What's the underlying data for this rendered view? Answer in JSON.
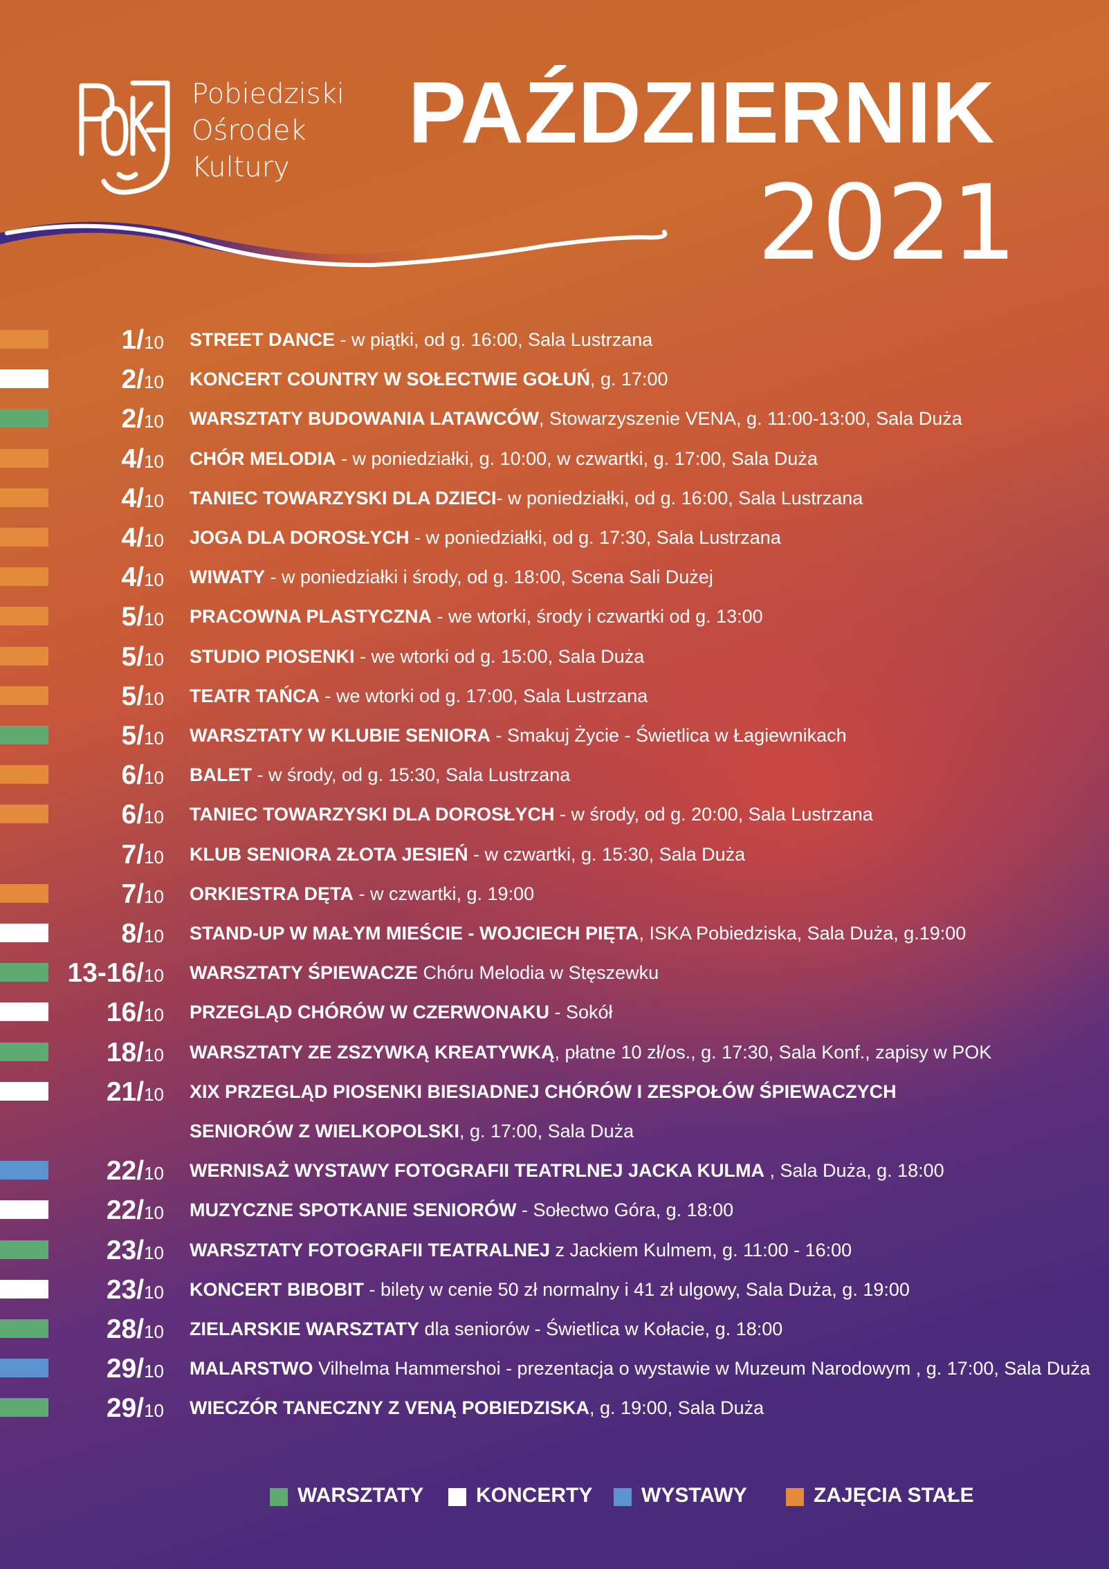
{
  "header": {
    "org_lines": [
      "Pobiedziski",
      "Ośrodek",
      "Kultury"
    ],
    "month": "PAŹDZIERNIK",
    "year": "2021"
  },
  "colors": {
    "warsztaty": "#5dab72",
    "koncerty": "#ffffff",
    "wystawy": "#5a93cf",
    "zajecia_stale": "#e38b3a"
  },
  "events": [
    {
      "category": "zajecia_stale",
      "day": "1/",
      "month": "10",
      "bold": "STREET DANCE",
      "rest": " - w piątki, od g. 16:00, Sala Lustrzana"
    },
    {
      "category": "koncerty",
      "day": "2/",
      "month": "10",
      "bold": "KONCERT COUNTRY W SOŁECTWIE GOŁUŃ",
      "rest": ", g. 17:00"
    },
    {
      "category": "warsztaty",
      "day": "2/",
      "month": "10",
      "bold": "WARSZTATY BUDOWANIA LATAWCÓW",
      "rest": ", Stowarzyszenie VENA, g. 11:00-13:00, Sala Duża"
    },
    {
      "category": "zajecia_stale",
      "day": "4/",
      "month": "10",
      "bold": "CHÓR MELODIA",
      "rest": " - w poniedziałki, g. 10:00, w czwartki, g. 17:00, Sala Duża"
    },
    {
      "category": "zajecia_stale",
      "day": "4/",
      "month": "10",
      "bold": "TANIEC TOWARZYSKI DLA DZIECI",
      "rest": "- w poniedziałki, od g. 16:00, Sala Lustrzana"
    },
    {
      "category": "zajecia_stale",
      "day": "4/",
      "month": "10",
      "bold": "JOGA DLA DOROSŁYCH",
      "rest": " - w poniedziałki, od g. 17:30, Sala Lustrzana"
    },
    {
      "category": "zajecia_stale",
      "day": "4/",
      "month": "10",
      "bold": "WIWATY",
      "rest": " - w poniedziałki i środy, od g. 18:00, Scena Sali Dużej"
    },
    {
      "category": "zajecia_stale",
      "day": "5/",
      "month": "10",
      "bold": "PRACOWNA PLASTYCZNA",
      "rest": " - we wtorki, środy i czwartki od g. 13:00"
    },
    {
      "category": "zajecia_stale",
      "day": "5/",
      "month": "10",
      "bold": "STUDIO PIOSENKI",
      "rest": " - we wtorki od g. 15:00, Sala Duża"
    },
    {
      "category": "zajecia_stale",
      "day": "5/",
      "month": "10",
      "bold": "TEATR TAŃCA",
      "rest": " - we wtorki od g. 17:00, Sala Lustrzana"
    },
    {
      "category": "warsztaty",
      "day": "5/",
      "month": "10",
      "bold": "WARSZTATY W KLUBIE SENIORA",
      "rest": " - Smakuj Życie - Świetlica w Łagiewnikach"
    },
    {
      "category": "zajecia_stale",
      "day": "6/",
      "month": "10",
      "bold": "BALET",
      "rest": " - w środy, od g. 15:30, Sala Lustrzana"
    },
    {
      "category": "zajecia_stale",
      "day": "6/",
      "month": "10",
      "bold": "TANIEC TOWARZYSKI DLA DOROSŁYCH",
      "rest": " - w środy, od g. 20:00, Sala Lustrzana"
    },
    {
      "category": "none",
      "day": "7/",
      "month": "10",
      "bold": "KLUB SENIORA ZŁOTA JESIEŃ",
      "rest": " - w czwartki, g. 15:30, Sala Duża"
    },
    {
      "category": "zajecia_stale",
      "day": "7/",
      "month": "10",
      "bold": "ORKIESTRA DĘTA",
      "rest": " - w czwartki, g. 19:00"
    },
    {
      "category": "koncerty",
      "day": "8/",
      "month": "10",
      "bold": "STAND-UP W MAŁYM MIEŚCIE - WOJCIECH PIĘTA",
      "rest": ", ISKA Pobiedziska, Sala Duża, g.19:00"
    },
    {
      "category": "warsztaty",
      "day": "13-16/",
      "month": "10",
      "bold": "WARSZTATY ŚPIEWACZE",
      "rest": "  Chóru Melodia w Stęszewku"
    },
    {
      "category": "koncerty",
      "day": "16/",
      "month": "10",
      "bold": "PRZEGLĄD CHÓRÓW W CZERWONAKU",
      "rest": " - Sokół"
    },
    {
      "category": "warsztaty",
      "day": "18/",
      "month": "10",
      "bold": "WARSZTATY ZE ZSZYWKĄ KREATYWKĄ",
      "rest": ", płatne 10 zł/os., g. 17:30, Sala Konf., zapisy w POK"
    },
    {
      "category": "koncerty",
      "day": "21/",
      "month": "10",
      "bold": "XIX PRZEGLĄD PIOSENKI BIESIADNEJ CHÓRÓW I ZESPOŁÓW ŚPIEWACZYCH",
      "rest": ""
    },
    {
      "category": "none",
      "day": "",
      "month": "",
      "bold": "SENIORÓW Z WIELKOPOLSKI",
      "rest": ", g. 17:00, Sala Duża"
    },
    {
      "category": "wystawy",
      "day": "22/",
      "month": "10",
      "bold": "WERNISAŻ WYSTAWY FOTOGRAFII TEATRLNEJ JACKA KULMA",
      "rest": " , Sala Duża, g. 18:00"
    },
    {
      "category": "koncerty",
      "day": "22/",
      "month": "10",
      "bold": "MUZYCZNE SPOTKANIE SENIORÓW",
      "rest": " - Sołectwo Góra, g. 18:00"
    },
    {
      "category": "warsztaty",
      "day": "23/",
      "month": "10",
      "bold": "WARSZTATY FOTOGRAFII TEATRALNEJ",
      "rest": " z Jackiem Kulmem,  g. 11:00 - 16:00"
    },
    {
      "category": "koncerty",
      "day": "23/",
      "month": "10",
      "bold": "KONCERT BIBOBIT",
      "rest": " - bilety w cenie 50 zł normalny i 41 zł ulgowy, Sala Duża, g. 19:00"
    },
    {
      "category": "warsztaty",
      "day": "28/",
      "month": "10",
      "bold": "ZIELARSKIE WARSZTATY",
      "rest": " dla seniorów - Świetlica w Kołacie, g. 18:00"
    },
    {
      "category": "wystawy",
      "day": "29/",
      "month": "10",
      "bold": "MALARSTWO",
      "rest": " Vilhelma Hammershoi - prezentacja o wystawie w Muzeum Narodowym , g. 17:00, Sala Duża"
    },
    {
      "category": "warsztaty",
      "day": "29/",
      "month": "10",
      "bold": "WIECZÓR TANECZNY Z VENĄ POBIEDZISKA",
      "rest": ", g. 19:00, Sala Duża"
    }
  ],
  "legend": [
    {
      "category": "warsztaty",
      "label": "WARSZTATY"
    },
    {
      "category": "koncerty",
      "label": "KONCERTY"
    },
    {
      "category": "wystawy",
      "label": "WYSTAWY"
    },
    {
      "category": "zajecia_stale",
      "label": "ZAJĘCIA STAŁE"
    }
  ]
}
